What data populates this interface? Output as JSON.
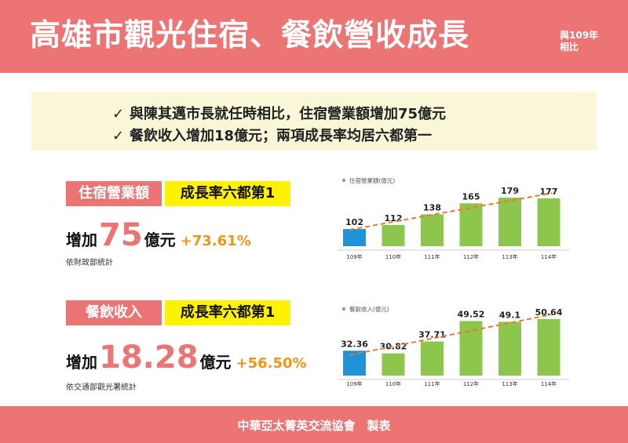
{
  "header": {
    "title": "高雄市觀光住宿、餐飲營收成長",
    "note_line1": "與109年",
    "note_line2": "相比"
  },
  "summary": {
    "check": "✓",
    "line1": "與陳其邁市長就任時相比，住宿營業額增加75億元",
    "line2": "餐飲收入增加18億元；兩項成長率均居六都第一"
  },
  "lodging": {
    "label": "住宿營業額",
    "rank": "成長率六都第1",
    "increase_prefix": "增加",
    "increase_value": "75",
    "increase_unit": "億元",
    "increase_pct": "+73.61%",
    "source": "依財政部統計"
  },
  "dining": {
    "label": "餐飲收入",
    "rank": "成長率六都第1",
    "increase_prefix": "增加",
    "increase_value": "18.28",
    "increase_unit": "億元",
    "increase_pct": "+56.50%",
    "source": "依交通部觀光署統計"
  },
  "colors": {
    "accent": "#ec7474",
    "highlight": "#fff200",
    "bar_base": "#1f93d8",
    "bar_other": "#8cc64c",
    "trend": "#e9792c",
    "pct": "#f39418"
  },
  "chart_data": [
    {
      "type": "bar",
      "legend": "住宿營業額(億元)",
      "categories": [
        "109年",
        "110年",
        "111年",
        "112年",
        "113年",
        "114年"
      ],
      "values": [
        102,
        112,
        138,
        165,
        179,
        177
      ],
      "labels": [
        "102",
        "112",
        "138",
        "165",
        "179",
        "177"
      ],
      "trendline": true
    },
    {
      "type": "bar",
      "legend": "餐飲收入(億元)",
      "categories": [
        "109年",
        "110年",
        "111年",
        "112年",
        "113年",
        "114年"
      ],
      "values": [
        32.36,
        30.82,
        37.71,
        49.52,
        49.1,
        50.64
      ],
      "labels": [
        "32.36",
        "30.82",
        "37.71",
        "49.52",
        "49.1",
        "50.64"
      ],
      "trendline": true
    }
  ],
  "footer": {
    "text": "中華亞太菁英交流協會　製表"
  }
}
